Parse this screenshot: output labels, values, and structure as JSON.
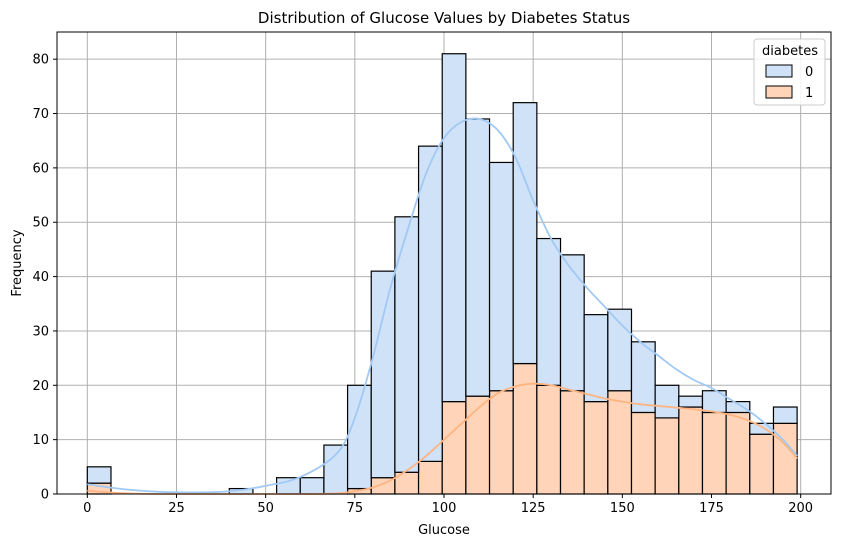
{
  "chart_data": {
    "type": "bar",
    "subtype": "stacked-histogram-with-kde",
    "title": "Distribution of Glucose Values by Diabetes Status",
    "xlabel": "Glucose",
    "ylabel": "Frequency",
    "xlim": [
      -8.5,
      208.5
    ],
    "ylim": [
      0,
      85
    ],
    "xticks": [
      0,
      25,
      50,
      75,
      100,
      125,
      150,
      175,
      200
    ],
    "yticks": [
      0,
      10,
      20,
      30,
      40,
      50,
      60,
      70,
      80
    ],
    "grid": true,
    "legend": {
      "title": "diabetes",
      "placement": "top-right"
    },
    "bin_width": 6.633,
    "bin_edges": [
      0,
      6.633,
      13.267,
      19.9,
      26.533,
      33.167,
      39.8,
      46.433,
      53.067,
      59.7,
      66.333,
      72.967,
      79.6,
      86.233,
      92.867,
      99.5,
      106.133,
      112.767,
      119.4,
      126.033,
      132.667,
      139.3,
      145.933,
      152.567,
      159.2,
      165.833,
      172.467,
      179.1,
      185.733,
      192.367,
      199
    ],
    "series": [
      {
        "name": "0",
        "color": "#a1c9f4",
        "fill": "#cfe2f8",
        "values": [
          3,
          0,
          0,
          0,
          0,
          0,
          1,
          0,
          3,
          3,
          9,
          19,
          38,
          47,
          58,
          64,
          51,
          42,
          48,
          27,
          25,
          16,
          15,
          13,
          6,
          2,
          4,
          2,
          2,
          3
        ],
        "kde": [
          [
            0,
            1.8
          ],
          [
            10,
            0.9
          ],
          [
            20,
            0.4
          ],
          [
            30,
            0.3
          ],
          [
            40,
            0.5
          ],
          [
            50,
            1.5
          ],
          [
            60,
            3.2
          ],
          [
            70,
            7.5
          ],
          [
            75,
            14
          ],
          [
            80,
            25
          ],
          [
            85,
            38
          ],
          [
            90,
            49
          ],
          [
            95,
            59
          ],
          [
            100,
            65.5
          ],
          [
            105,
            68.5
          ],
          [
            110,
            69
          ],
          [
            115,
            67
          ],
          [
            120,
            62
          ],
          [
            125,
            54
          ],
          [
            130,
            47
          ],
          [
            135,
            42
          ],
          [
            140,
            38
          ],
          [
            145,
            34.5
          ],
          [
            150,
            31
          ],
          [
            155,
            28
          ],
          [
            160,
            25.5
          ],
          [
            165,
            23
          ],
          [
            170,
            21
          ],
          [
            175,
            19.5
          ],
          [
            180,
            17.5
          ],
          [
            185,
            15.5
          ],
          [
            190,
            13
          ],
          [
            195,
            10
          ],
          [
            199,
            7
          ]
        ]
      },
      {
        "name": "1",
        "color": "#ffb482",
        "fill": "#ffd4b8",
        "values": [
          2,
          0,
          0,
          0,
          0,
          0,
          0,
          0,
          0,
          0,
          0,
          1,
          3,
          4,
          6,
          17,
          18,
          19,
          24,
          20,
          19,
          17,
          19,
          15,
          14,
          16,
          15,
          15,
          11,
          13
        ],
        "kde": [
          [
            0,
            0.6
          ],
          [
            10,
            0.15
          ],
          [
            20,
            0
          ],
          [
            40,
            0
          ],
          [
            60,
            0
          ],
          [
            70,
            0.1
          ],
          [
            75,
            0.5
          ],
          [
            80,
            1.2
          ],
          [
            85,
            2.5
          ],
          [
            90,
            4.5
          ],
          [
            95,
            7
          ],
          [
            100,
            10
          ],
          [
            105,
            13
          ],
          [
            110,
            16
          ],
          [
            115,
            18.5
          ],
          [
            120,
            19.8
          ],
          [
            125,
            20.3
          ],
          [
            130,
            20
          ],
          [
            135,
            19.2
          ],
          [
            140,
            18.4
          ],
          [
            145,
            17.6
          ],
          [
            150,
            17
          ],
          [
            155,
            16.5
          ],
          [
            160,
            16.2
          ],
          [
            165,
            15.9
          ],
          [
            170,
            15.6
          ],
          [
            175,
            15.2
          ],
          [
            180,
            14.6
          ],
          [
            185,
            13.6
          ],
          [
            190,
            12
          ],
          [
            195,
            9.5
          ],
          [
            199,
            6.5
          ]
        ]
      }
    ]
  }
}
